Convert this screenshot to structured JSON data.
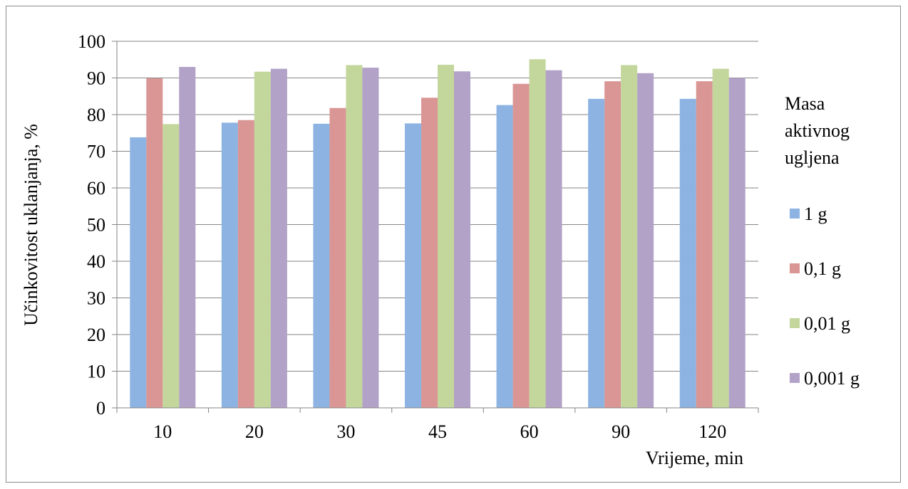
{
  "chart_data": {
    "type": "bar",
    "title": "",
    "xlabel": "Vrijeme, min",
    "ylabel": "Učinkovitost uklanjanja, %",
    "ylim": [
      0,
      100
    ],
    "yticks": [
      0,
      10,
      20,
      30,
      40,
      50,
      60,
      70,
      80,
      90,
      100
    ],
    "grid": true,
    "legend_title": "Masa aktivnog ugljena",
    "legend_position": "right",
    "categories": [
      "10",
      "20",
      "30",
      "45",
      "60",
      "90",
      "120"
    ],
    "series": [
      {
        "name": "1 g",
        "color": "#8db3e2",
        "values": [
          73.8,
          77.8,
          77.5,
          77.6,
          82.6,
          84.3,
          84.3
        ]
      },
      {
        "name": "0,1 g",
        "color": "#d99694",
        "values": [
          89.9,
          78.5,
          81.8,
          84.6,
          88.4,
          89.1,
          89.1
        ]
      },
      {
        "name": "0,01 g",
        "color": "#c3d69b",
        "values": [
          77.4,
          91.7,
          93.5,
          93.6,
          95.1,
          93.5,
          92.5
        ]
      },
      {
        "name": "0,001 g",
        "color": "#b2a2c7",
        "values": [
          93.0,
          92.5,
          92.8,
          91.8,
          92.1,
          91.3,
          90.0
        ]
      }
    ]
  }
}
